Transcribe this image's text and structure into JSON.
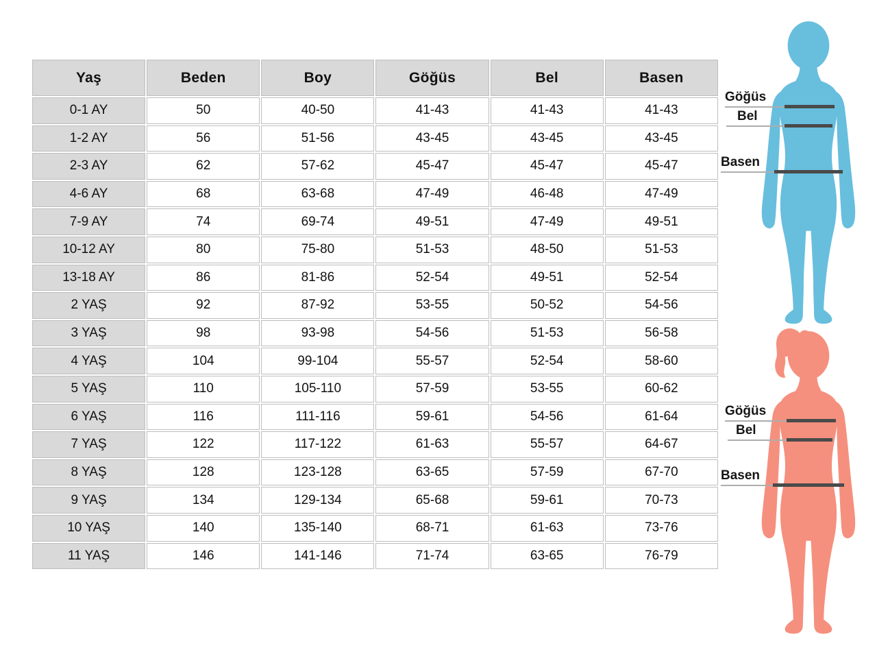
{
  "chart_data": {
    "type": "table",
    "title": "",
    "columns": [
      "Yaş",
      "Beden",
      "Boy",
      "Göğüs",
      "Bel",
      "Basen"
    ],
    "rows": [
      [
        "0-1 AY",
        "50",
        "40-50",
        "41-43",
        "41-43",
        "41-43"
      ],
      [
        "1-2 AY",
        "56",
        "51-56",
        "43-45",
        "43-45",
        "43-45"
      ],
      [
        "2-3 AY",
        "62",
        "57-62",
        "45-47",
        "45-47",
        "45-47"
      ],
      [
        "4-6 AY",
        "68",
        "63-68",
        "47-49",
        "46-48",
        "47-49"
      ],
      [
        "7-9 AY",
        "74",
        "69-74",
        "49-51",
        "47-49",
        "49-51"
      ],
      [
        "10-12 AY",
        "80",
        "75-80",
        "51-53",
        "48-50",
        "51-53"
      ],
      [
        "13-18 AY",
        "86",
        "81-86",
        "52-54",
        "49-51",
        "52-54"
      ],
      [
        "2 YAŞ",
        "92",
        "87-92",
        "53-55",
        "50-52",
        "54-56"
      ],
      [
        "3 YAŞ",
        "98",
        "93-98",
        "54-56",
        "51-53",
        "56-58"
      ],
      [
        "4 YAŞ",
        "104",
        "99-104",
        "55-57",
        "52-54",
        "58-60"
      ],
      [
        "5 YAŞ",
        "110",
        "105-110",
        "57-59",
        "53-55",
        "60-62"
      ],
      [
        "6 YAŞ",
        "116",
        "111-116",
        "59-61",
        "54-56",
        "61-64"
      ],
      [
        "7 YAŞ",
        "122",
        "117-122",
        "61-63",
        "55-57",
        "64-67"
      ],
      [
        "8 YAŞ",
        "128",
        "123-128",
        "63-65",
        "57-59",
        "67-70"
      ],
      [
        "9 YAŞ",
        "134",
        "129-134",
        "65-68",
        "59-61",
        "70-73"
      ],
      [
        "10 YAŞ",
        "140",
        "135-140",
        "68-71",
        "61-63",
        "73-76"
      ],
      [
        "11 YAŞ",
        "146",
        "141-146",
        "71-74",
        "63-65",
        "76-79"
      ]
    ]
  },
  "measurements": {
    "chest": "Göğüs",
    "waist": "Bel",
    "hip": "Basen"
  },
  "colors": {
    "boy_fill": "#68bedd",
    "girl_fill": "#f5907e",
    "table_header_bg": "#d9d9d9",
    "table_border": "#bdbdbd",
    "measure_line_dark": "#4a4a4a",
    "measure_line_thin": "#adadad",
    "text": "#111111"
  }
}
